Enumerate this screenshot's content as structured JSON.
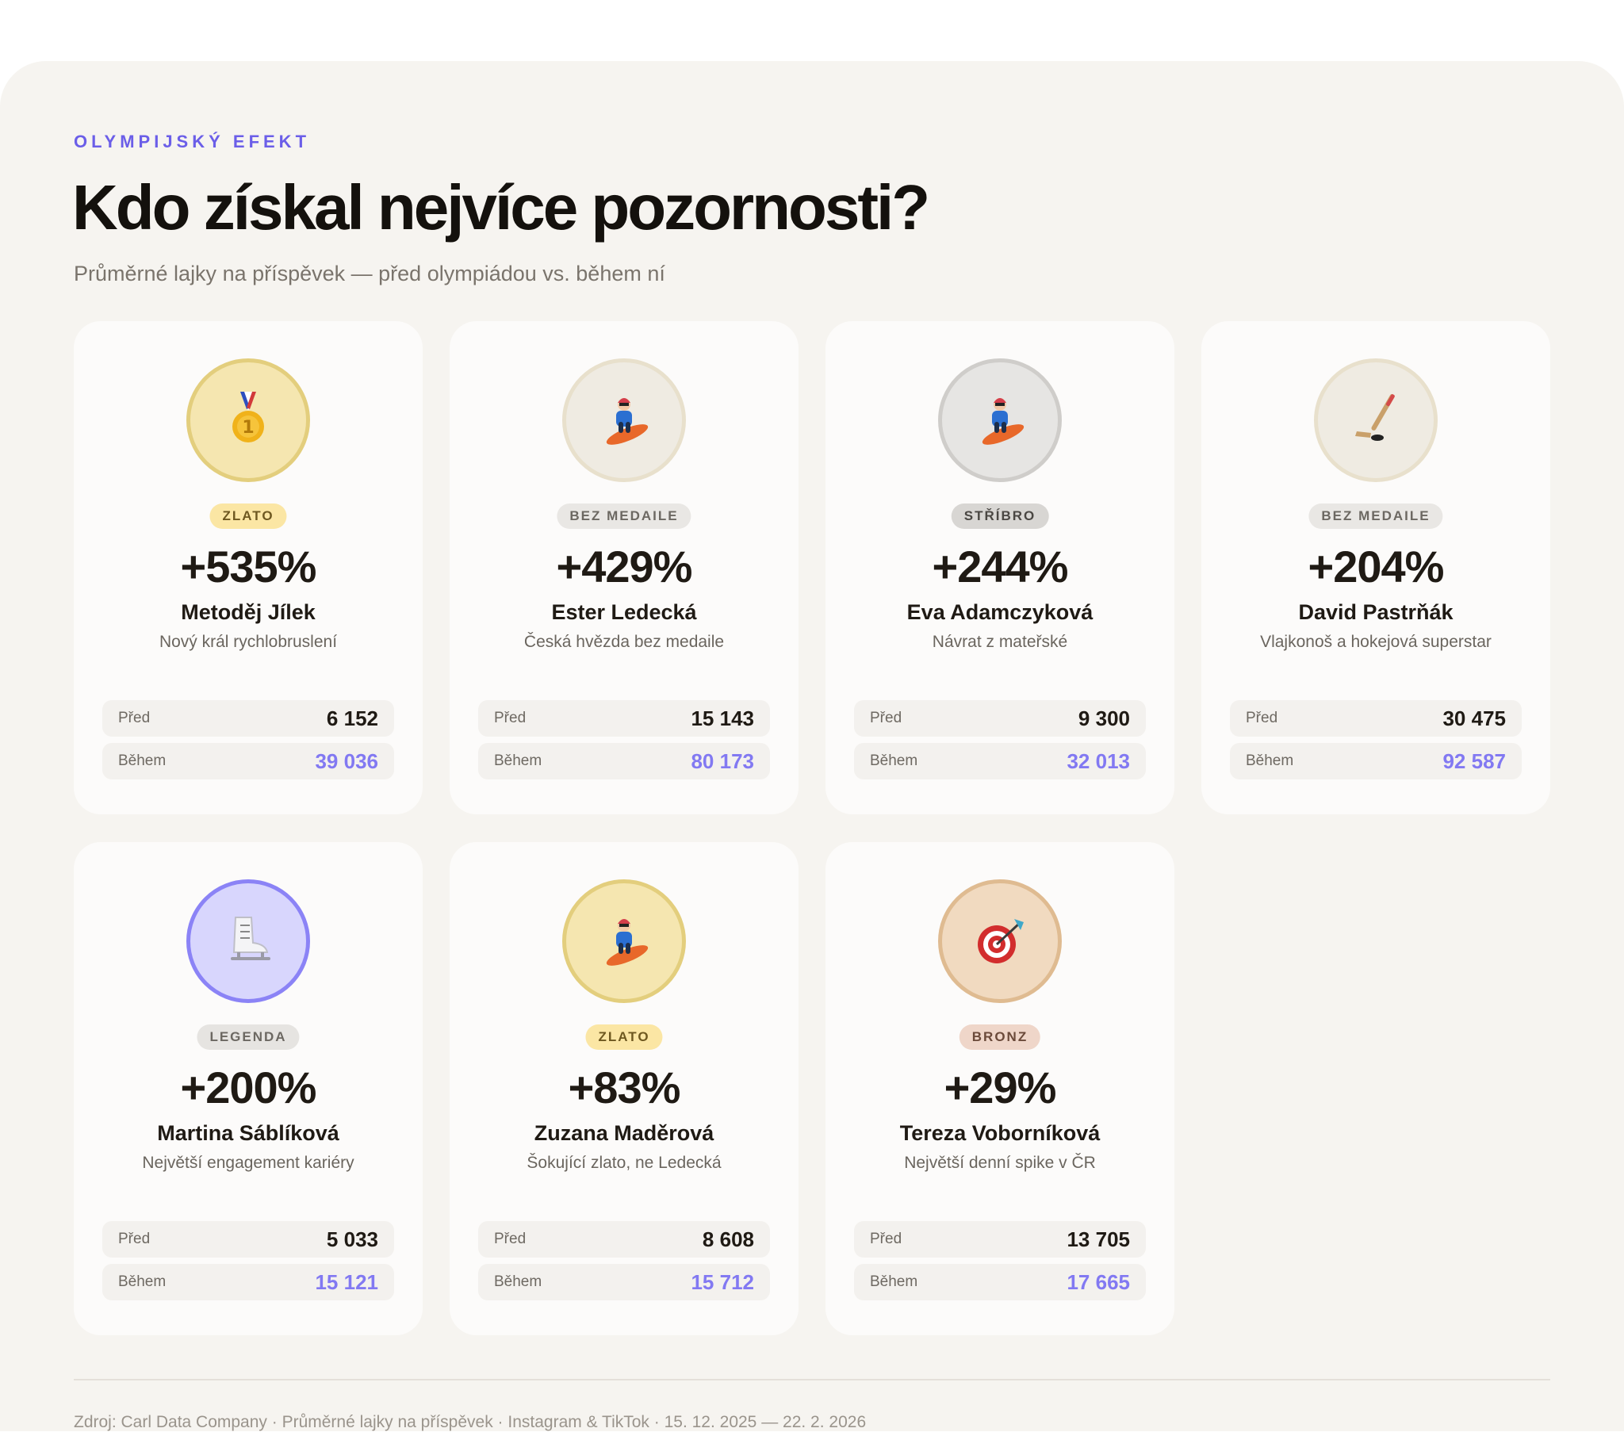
{
  "header": {
    "eyebrow": "OLYMPIJSKÝ EFEKT",
    "title": "Kdo získal nejvíce pozornosti?",
    "subtitle": "Průměrné lajky na příspěvek — před olympiádou vs. během ní"
  },
  "labels": {
    "before": "Před",
    "during": "Během"
  },
  "cards": [
    {
      "icon": "gold-medal-icon",
      "avatar_style": "gold",
      "badge": "ZLATO",
      "badge_style": "gold",
      "change": "+535%",
      "name": "Metoděj Jílek",
      "description": "Nový král rychlobruslení",
      "before": "6 152",
      "during": "39 036"
    },
    {
      "icon": "snowboarder-icon",
      "avatar_style": "plain",
      "badge": "BEZ MEDAILE",
      "badge_style": "none",
      "change": "+429%",
      "name": "Ester Ledecká",
      "description": "Česká hvězda bez medaile",
      "before": "15 143",
      "during": "80 173"
    },
    {
      "icon": "snowboarder-icon",
      "avatar_style": "silver",
      "badge": "STŘÍBRO",
      "badge_style": "silver",
      "change": "+244%",
      "name": "Eva Adamczyková",
      "description": "Návrat z mateřské",
      "before": "9 300",
      "during": "32 013"
    },
    {
      "icon": "hockey-stick-icon",
      "avatar_style": "plain",
      "badge": "BEZ MEDAILE",
      "badge_style": "none",
      "change": "+204%",
      "name": "David Pastrňák",
      "description": "Vlajkonoš a hokejová superstar",
      "before": "30 475",
      "during": "92 587"
    },
    {
      "icon": "ice-skate-icon",
      "avatar_style": "legend",
      "badge": "LEGENDA",
      "badge_style": "legend",
      "change": "+200%",
      "name": "Martina Sáblíková",
      "description": "Největší engagement kariéry",
      "before": "5 033",
      "during": "15 121"
    },
    {
      "icon": "snowboarder-icon",
      "avatar_style": "gold",
      "badge": "ZLATO",
      "badge_style": "gold",
      "change": "+83%",
      "name": "Zuzana Maděrová",
      "description": "Šokující zlato, ne Ledecká",
      "before": "8 608",
      "during": "15 712"
    },
    {
      "icon": "target-icon",
      "avatar_style": "bronze",
      "badge": "BRONZ",
      "badge_style": "bronze",
      "change": "+29%",
      "name": "Tereza Voborníková",
      "description": "Největší denní spike v ČR",
      "before": "13 705",
      "during": "17 665"
    }
  ],
  "footer": "Zdroj: Carl Data Company · Průměrné lajky na příspěvek · Instagram & TikTok · 15. 12. 2025 — 22. 2. 2026"
}
